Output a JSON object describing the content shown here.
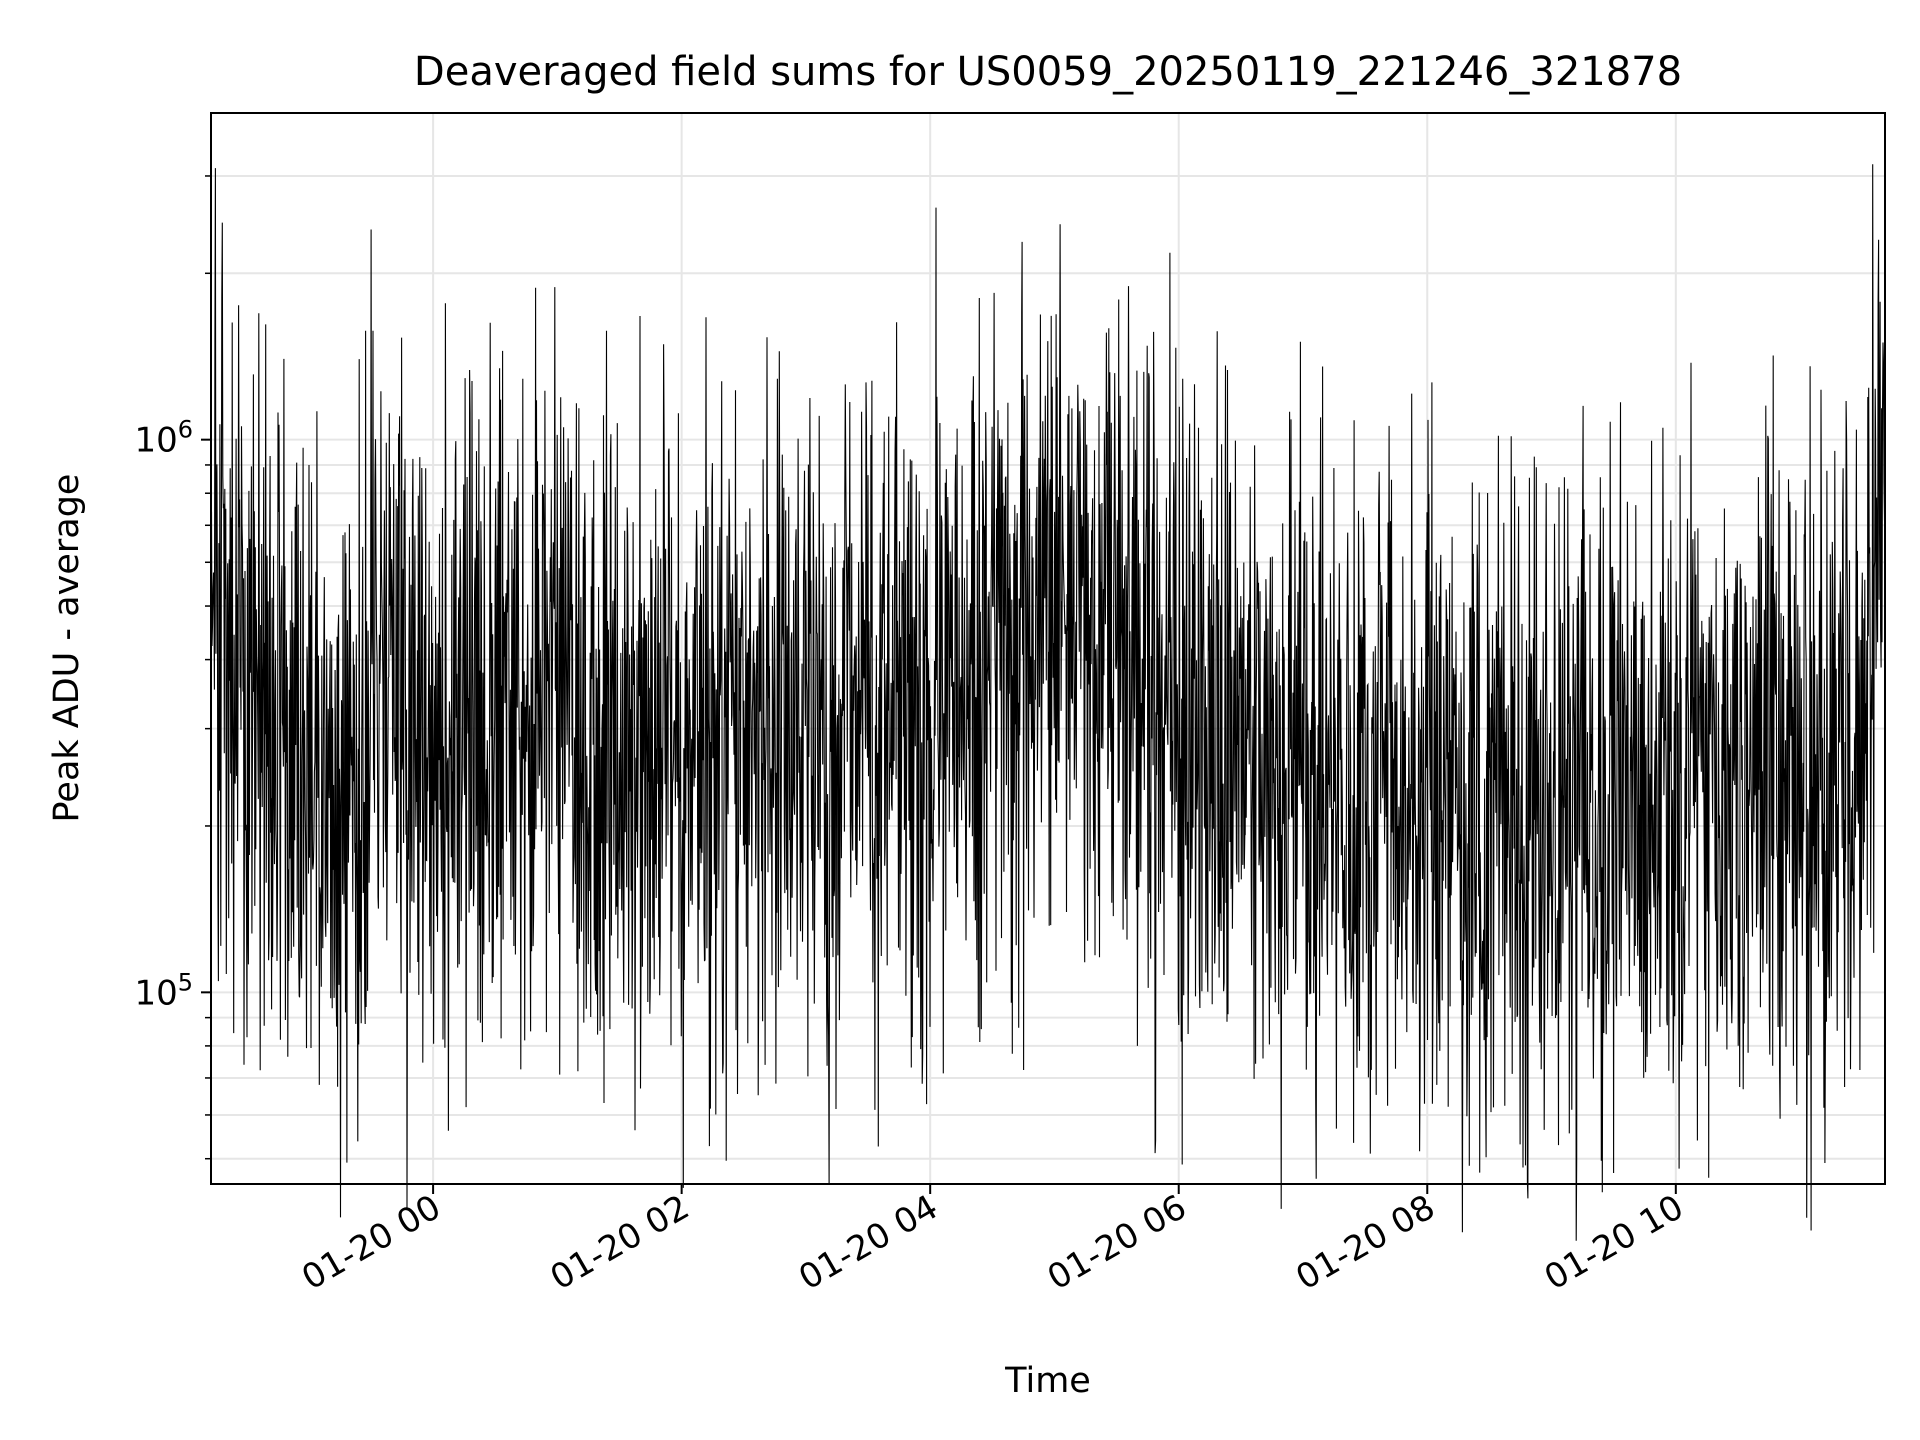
{
  "chart_data": {
    "type": "line",
    "title": "Deaveraged field sums for US0059_20250119_221246_321878",
    "xlabel": "Time",
    "ylabel": "Peak ADU - average",
    "x_start": "2025-01-19 22:12:46",
    "x_end": "2025-01-20 11:41:00",
    "xlim": [
      "2025-01-19 22:12:46",
      "2025-01-20 11:41:00"
    ],
    "ylim": [
      45000,
      3900000
    ],
    "yscale": "log",
    "grid": true,
    "line_color": "#000000",
    "grid_color": "#e6e6e6",
    "xticks": [
      {
        "value": "2025-01-20 00:00",
        "label": "01-20 00"
      },
      {
        "value": "2025-01-20 02:00",
        "label": "01-20 02"
      },
      {
        "value": "2025-01-20 04:00",
        "label": "01-20 04"
      },
      {
        "value": "2025-01-20 06:00",
        "label": "01-20 06"
      },
      {
        "value": "2025-01-20 08:00",
        "label": "01-20 08"
      },
      {
        "value": "2025-01-20 10:00",
        "label": "01-20 10"
      }
    ],
    "yticks_major": [
      {
        "value": 100000,
        "base": "10",
        "exp": "5"
      },
      {
        "value": 1000000,
        "base": "10",
        "exp": "6"
      }
    ],
    "yticks_minor": [
      50000,
      60000,
      70000,
      80000,
      90000,
      200000,
      300000,
      400000,
      500000,
      600000,
      700000,
      800000,
      900000,
      2000000,
      3000000
    ],
    "series": [
      {
        "name": "",
        "trend_knots": [
          {
            "t": "2025-01-19 22:12:46",
            "v": 700000
          },
          {
            "t": "2025-01-19 22:20",
            "v": 380000
          },
          {
            "t": "2025-01-19 22:45",
            "v": 280000
          },
          {
            "t": "2025-01-19 23:15",
            "v": 230000
          },
          {
            "t": "2025-01-19 23:30",
            "v": 330000
          },
          {
            "t": "2025-01-20 00:00",
            "v": 260000
          },
          {
            "t": "2025-01-20 00:30",
            "v": 300000
          },
          {
            "t": "2025-01-20 01:00",
            "v": 380000
          },
          {
            "t": "2025-01-20 01:30",
            "v": 300000
          },
          {
            "t": "2025-01-20 02:00",
            "v": 260000
          },
          {
            "t": "2025-01-20 02:30",
            "v": 310000
          },
          {
            "t": "2025-01-20 03:00",
            "v": 300000
          },
          {
            "t": "2025-01-20 03:30",
            "v": 320000
          },
          {
            "t": "2025-01-20 04:00",
            "v": 350000
          },
          {
            "t": "2025-01-20 04:30",
            "v": 380000
          },
          {
            "t": "2025-01-20 05:00",
            "v": 470000
          },
          {
            "t": "2025-01-20 05:30",
            "v": 400000
          },
          {
            "t": "2025-01-20 06:00",
            "v": 300000
          },
          {
            "t": "2025-01-20 06:30",
            "v": 280000
          },
          {
            "t": "2025-01-20 07:00",
            "v": 250000
          },
          {
            "t": "2025-01-20 07:30",
            "v": 230000
          },
          {
            "t": "2025-01-20 08:00",
            "v": 220000
          },
          {
            "t": "2025-01-20 08:30",
            "v": 220000
          },
          {
            "t": "2025-01-20 09:00",
            "v": 210000
          },
          {
            "t": "2025-01-20 09:30",
            "v": 210000
          },
          {
            "t": "2025-01-20 10:00",
            "v": 220000
          },
          {
            "t": "2025-01-20 10:30",
            "v": 240000
          },
          {
            "t": "2025-01-20 11:00",
            "v": 250000
          },
          {
            "t": "2025-01-20 11:30",
            "v": 280000
          },
          {
            "t": "2025-01-20 11:36",
            "v": 700000
          },
          {
            "t": "2025-01-20 11:41:00",
            "v": 750000
          }
        ],
        "peaks": [
          {
            "t": "2025-01-19 22:15",
            "v": 3100000
          },
          {
            "t": "2025-01-19 22:26",
            "v": 1750000
          },
          {
            "t": "2025-01-19 22:48",
            "v": 1400000
          },
          {
            "t": "2025-01-19 23:30",
            "v": 2400000
          },
          {
            "t": "2025-01-20 01:00",
            "v": 1020000
          },
          {
            "t": "2025-01-20 05:07",
            "v": 1200000
          },
          {
            "t": "2025-01-20 10:47",
            "v": 1420000
          },
          {
            "t": "2025-01-20 11:35",
            "v": 3150000
          },
          {
            "t": "2025-01-20 11:38",
            "v": 2300000
          }
        ],
        "troughs": [
          {
            "t": "2025-01-19 23:05",
            "v": 68000
          },
          {
            "t": "2025-01-20 00:16",
            "v": 62000
          },
          {
            "t": "2025-01-20 01:40",
            "v": 67000
          },
          {
            "t": "2025-01-20 01:10",
            "v": 72000
          },
          {
            "t": "2025-01-20 05:40",
            "v": 80000
          },
          {
            "t": "2025-01-20 08:00",
            "v": 82000
          }
        ]
      }
    ]
  }
}
